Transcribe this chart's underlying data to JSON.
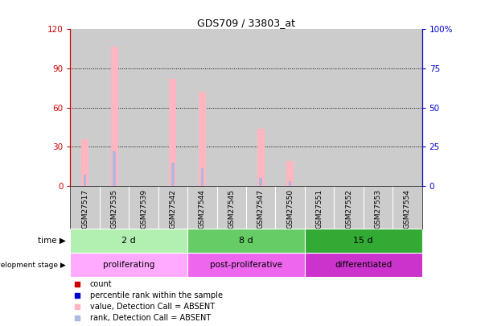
{
  "title": "GDS709 / 33803_at",
  "samples": [
    "GSM27517",
    "GSM27535",
    "GSM27539",
    "GSM27542",
    "GSM27544",
    "GSM27545",
    "GSM27547",
    "GSM27550",
    "GSM27551",
    "GSM27552",
    "GSM27553",
    "GSM27554"
  ],
  "absent_value_bars": [
    36,
    107,
    0,
    82,
    72,
    0,
    44,
    19,
    0,
    0,
    0,
    0
  ],
  "absent_rank_bars": [
    7,
    22,
    0,
    15,
    11,
    0,
    5,
    3,
    0,
    0,
    0,
    0
  ],
  "ylim_left": [
    0,
    120
  ],
  "ylim_right": [
    0,
    100
  ],
  "yticks_left": [
    0,
    30,
    60,
    90,
    120
  ],
  "yticks_right": [
    0,
    25,
    50,
    75,
    100
  ],
  "ytick_labels_right": [
    "0",
    "25",
    "50",
    "75",
    "100%"
  ],
  "ytick_labels_left": [
    "0",
    "30",
    "60",
    "90",
    "120"
  ],
  "time_groups": [
    {
      "label": "2 d",
      "start": 0,
      "end": 4,
      "color": "#b2f0b2"
    },
    {
      "label": "8 d",
      "start": 4,
      "end": 8,
      "color": "#66cc66"
    },
    {
      "label": "15 d",
      "start": 8,
      "end": 12,
      "color": "#33aa33"
    }
  ],
  "stage_groups": [
    {
      "label": "proliferating",
      "start": 0,
      "end": 4,
      "color": "#ffaaff"
    },
    {
      "label": "post-proliferative",
      "start": 4,
      "end": 8,
      "color": "#ee66ee"
    },
    {
      "label": "differentiated",
      "start": 8,
      "end": 12,
      "color": "#cc33cc"
    }
  ],
  "bar_color_absent_value": "#ffb6c1",
  "bar_color_absent_rank": "#aabbdd",
  "dot_color_count": "#cc0000",
  "dot_color_rank": "#0000cc",
  "legend_items": [
    {
      "color": "#cc0000",
      "label": "count"
    },
    {
      "color": "#0000cc",
      "label": "percentile rank within the sample"
    },
    {
      "color": "#ffb6c1",
      "label": "value, Detection Call = ABSENT"
    },
    {
      "color": "#aabbdd",
      "label": "rank, Detection Call = ABSENT"
    }
  ],
  "left_axis_color": "#cc0000",
  "right_axis_color": "#0000cc",
  "bg_color": "#ffffff",
  "plot_bg_color": "#cccccc",
  "xtick_bg_color": "#cccccc"
}
